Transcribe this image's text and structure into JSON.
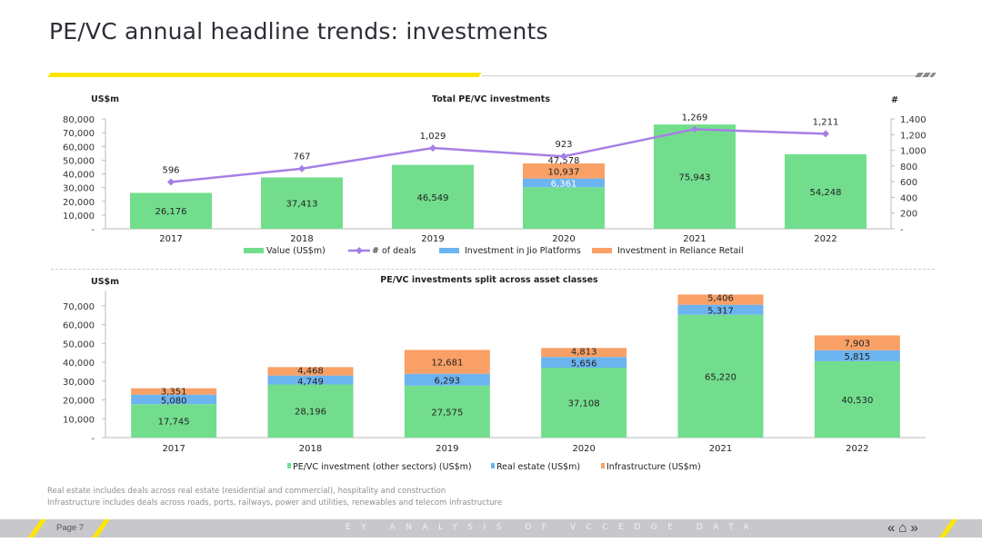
{
  "page_title": "PE/VC annual headline trends: investments",
  "footer": {
    "page_label": "Page 7",
    "center_text": "EY ANALYSIS OF VCCEDGE DATA",
    "icons": [
      "previous-icon",
      "home-icon",
      "next-icon"
    ]
  },
  "notes": [
    "Real estate includes deals across real estate (residential and commercial), hospitality and construction",
    "Infrastructure includes deals across roads, ports, railways, power and utilities, renewables and telecom infrastructure"
  ],
  "colors": {
    "green": "#72de8d",
    "blue": "#6cb4ef",
    "orange": "#f9a066",
    "purple": "#a67fe6",
    "yellow": "#ffe600"
  },
  "chart_data": [
    {
      "type": "bar",
      "title": "Total PE/VC investments",
      "ylabel": "US$m",
      "y2label": "#",
      "categories": [
        "2017",
        "2018",
        "2019",
        "2020",
        "2021",
        "2022"
      ],
      "ylim": [
        0,
        80000
      ],
      "yticks": [
        "-",
        "10,000",
        "20,000",
        "30,000",
        "40,000",
        "50,000",
        "60,000",
        "70,000",
        "80,000"
      ],
      "y2lim": [
        0,
        1400
      ],
      "y2ticks": [
        "-",
        "200",
        "400",
        "600",
        "800",
        "1,000",
        "1,200",
        "1,400"
      ],
      "series": [
        {
          "name": "Value (US$m)",
          "kind": "bar",
          "values": [
            26176,
            37413,
            46549,
            30280,
            75943,
            54248
          ],
          "labels": [
            "26,176",
            "37,413",
            "46,549",
            "",
            "75,943",
            "54,248"
          ]
        },
        {
          "name": "# of deals",
          "kind": "line",
          "axis": "right",
          "values": [
            596,
            767,
            1029,
            923,
            1269,
            1211
          ],
          "labels": [
            "596",
            "767",
            "1,029",
            "923",
            "1,269",
            "1,211"
          ]
        },
        {
          "name": "Investment in Jio Platforms",
          "kind": "bar",
          "values": [
            0,
            0,
            0,
            6361,
            0,
            0
          ],
          "labels": [
            "",
            "",
            "",
            "6,361",
            "",
            ""
          ]
        },
        {
          "name": "Investment in Reliance Retail",
          "kind": "bar",
          "values": [
            0,
            0,
            0,
            10937,
            0,
            0
          ],
          "labels": [
            "",
            "",
            "",
            "10,937",
            "",
            ""
          ]
        }
      ],
      "total_label_2020": "47,578",
      "legend": [
        "Value (US$m)",
        "# of deals",
        "Investment in Jio Platforms",
        "Investment in Reliance Retail"
      ],
      "legend_position": "bottom"
    },
    {
      "type": "bar",
      "stacked": true,
      "title": "PE/VC investments split across asset classes",
      "ylabel": "US$m",
      "categories": [
        "2017",
        "2018",
        "2019",
        "2020",
        "2021",
        "2022"
      ],
      "ylim": [
        0,
        80000
      ],
      "yticks": [
        "-",
        "10,000",
        "20,000",
        "30,000",
        "40,000",
        "50,000",
        "60,000",
        "70,000"
      ],
      "series": [
        {
          "name": "PE/VC investment (other sectors) (US$m)",
          "values": [
            17745,
            28196,
            27575,
            37108,
            65220,
            40530
          ],
          "labels": [
            "17,745",
            "28,196",
            "27,575",
            "37,108",
            "65,220",
            "40,530"
          ]
        },
        {
          "name": "Real estate (US$m)",
          "values": [
            5080,
            4749,
            6293,
            5656,
            5317,
            5815
          ],
          "labels": [
            "5,080",
            "4,749",
            "6,293",
            "5,656",
            "5,317",
            "5,815"
          ]
        },
        {
          "name": "Infrastructure (US$m)",
          "values": [
            3351,
            4468,
            12681,
            4813,
            5406,
            7903
          ],
          "labels": [
            "3,351",
            "4,468",
            "12,681",
            "4,813",
            "5,406",
            "7,903"
          ]
        }
      ],
      "legend": [
        "PE/VC investment (other sectors) (US$m)",
        "Real estate (US$m)",
        "Infrastructure (US$m)"
      ],
      "legend_position": "bottom"
    }
  ]
}
